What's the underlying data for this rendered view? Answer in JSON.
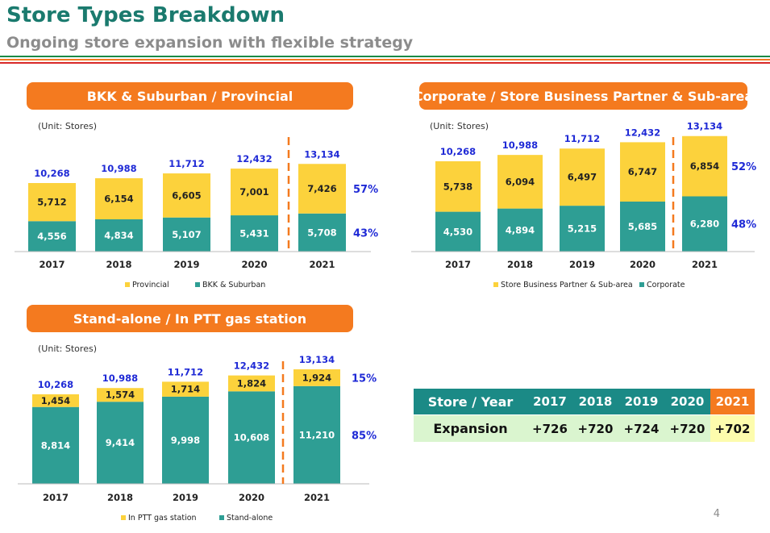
{
  "header": {
    "title": "Store Types Breakdown",
    "subtitle": "Ongoing store expansion with flexible strategy"
  },
  "colors": {
    "teal": "#2e9e94",
    "yellow": "#fcd23c",
    "orange": "#f47a1f",
    "header_teal": "#1a7a6e",
    "total_blue": "#1f2ad6",
    "table_teal": "#1b8a86",
    "table_green": "#daf5cf",
    "table_yellow": "#fdfcad"
  },
  "chart_data": [
    {
      "type": "bar",
      "stacked": true,
      "title": "BKK & Suburban / Provincial",
      "unit": "(Unit:  Stores)",
      "categories": [
        "2017",
        "2018",
        "2019",
        "2020",
        "2021"
      ],
      "series": [
        {
          "name": "BKK & Suburban",
          "values": [
            4556,
            4834,
            5107,
            5431,
            5708
          ],
          "color": "#2e9e94"
        },
        {
          "name": "Provincial",
          "values": [
            5712,
            6154,
            6605,
            7001,
            7426
          ],
          "color": "#fcd23c"
        }
      ],
      "totals": [
        10268,
        10988,
        11712,
        12432,
        13134
      ],
      "share_labels": {
        "top": "57%",
        "bottom": "43%"
      },
      "legend": [
        "Provincial",
        "BKK & Suburban"
      ],
      "legend_position": "bottom"
    },
    {
      "type": "bar",
      "stacked": true,
      "title": "Corporate / Store Business Partner & Sub-area",
      "unit": "(Unit:  Stores)",
      "categories": [
        "2017",
        "2018",
        "2019",
        "2020",
        "2021"
      ],
      "series": [
        {
          "name": "Corporate",
          "values": [
            4530,
            4894,
            5215,
            5685,
            6280
          ],
          "color": "#2e9e94"
        },
        {
          "name": "Store Business Partner & Sub-area",
          "values": [
            5738,
            6094,
            6497,
            6747,
            6854
          ],
          "color": "#fcd23c"
        }
      ],
      "totals": [
        10268,
        10988,
        11712,
        12432,
        13134
      ],
      "share_labels": {
        "top": "52%",
        "bottom": "48%"
      },
      "legend": [
        "Store Business Partner & Sub-area",
        "Corporate"
      ],
      "legend_position": "bottom"
    },
    {
      "type": "bar",
      "stacked": true,
      "title": "Stand-alone / In PTT gas station",
      "unit": "(Unit:  Stores)",
      "categories": [
        "2017",
        "2018",
        "2019",
        "2020",
        "2021"
      ],
      "series": [
        {
          "name": "Stand-alone",
          "values": [
            8814,
            9414,
            9998,
            10608,
            11210
          ],
          "color": "#2e9e94"
        },
        {
          "name": "In PTT gas station",
          "values": [
            1454,
            1574,
            1714,
            1824,
            1924
          ],
          "color": "#fcd23c"
        }
      ],
      "totals": [
        10268,
        10988,
        11712,
        12432,
        13134
      ],
      "share_labels": {
        "top": "15%",
        "bottom": "85%"
      },
      "legend": [
        "In PTT gas station",
        "Stand-alone"
      ],
      "legend_position": "bottom"
    }
  ],
  "expansion_table": {
    "header_label": "Store / Year",
    "years": [
      "2017",
      "2018",
      "2019",
      "2020",
      "2021"
    ],
    "row_label": "Expansion",
    "values": [
      "+726",
      "+720",
      "+724",
      "+720",
      "+702"
    ]
  },
  "page_number": "4"
}
